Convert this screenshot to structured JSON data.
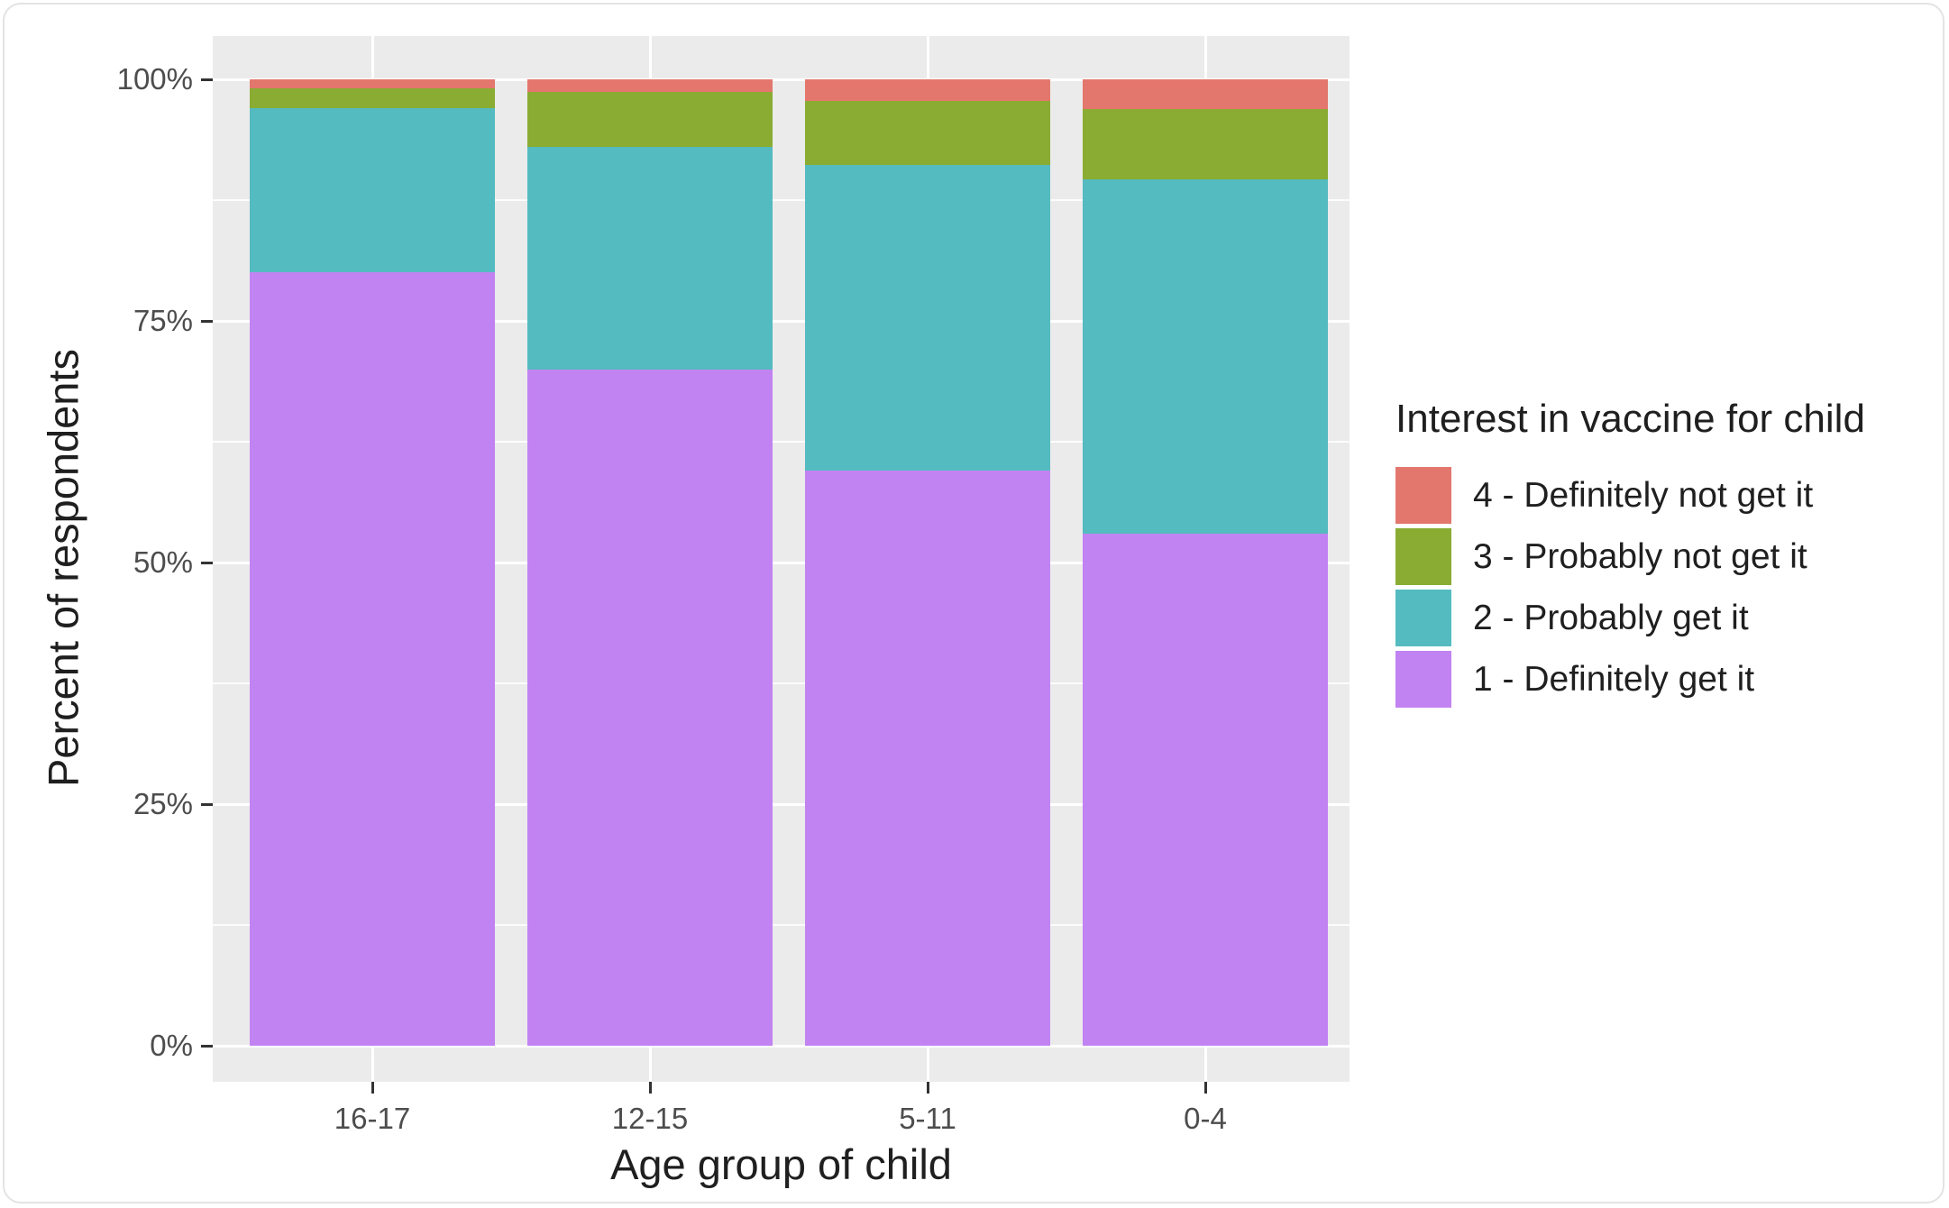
{
  "chart_data": {
    "type": "bar",
    "subtype": "stacked-percent-vertical",
    "title": "",
    "xlabel": "Age group of child",
    "ylabel": "Percent of respondents",
    "categories": [
      "16-17",
      "12-15",
      "5-11",
      "0-4"
    ],
    "series": [
      {
        "name": "4 - Definitely not get it",
        "color": "#e3776d",
        "values": [
          0.9,
          1.3,
          2.2,
          3.1
        ]
      },
      {
        "name": "3 - Probably not get it",
        "color": "#8aac33",
        "values": [
          2.1,
          5.7,
          6.7,
          7.3
        ]
      },
      {
        "name": "2 - Probably get it",
        "color": "#54bbc0",
        "values": [
          17.0,
          23.0,
          31.6,
          36.6
        ]
      },
      {
        "name": "1 - Definitely get it",
        "color": "#c283f2",
        "values": [
          80.0,
          70.0,
          59.5,
          53.0
        ]
      }
    ],
    "stack_order_bottom_to_top": [
      "1 - Definitely get it",
      "2 - Probably get it",
      "3 - Probably not get it",
      "4 - Definitely not get it"
    ],
    "y_ticks": [
      "0%",
      "25%",
      "50%",
      "75%",
      "100%"
    ],
    "y_tick_values": [
      0,
      25,
      50,
      75,
      100
    ],
    "y_minor_values": [
      12.5,
      37.5,
      62.5,
      87.5
    ],
    "ylim": [
      0,
      100
    ],
    "grid": "white major and minor horizontal lines plus vertical category lines on gray panel",
    "legend_position": "right",
    "legend_title": "Interest in vaccine for child",
    "panel_background": "#ebebeb",
    "gridline_color": "#ffffff",
    "tick_label_color": "#4d4d4d",
    "axis_title_color": "#1f1f1f"
  }
}
